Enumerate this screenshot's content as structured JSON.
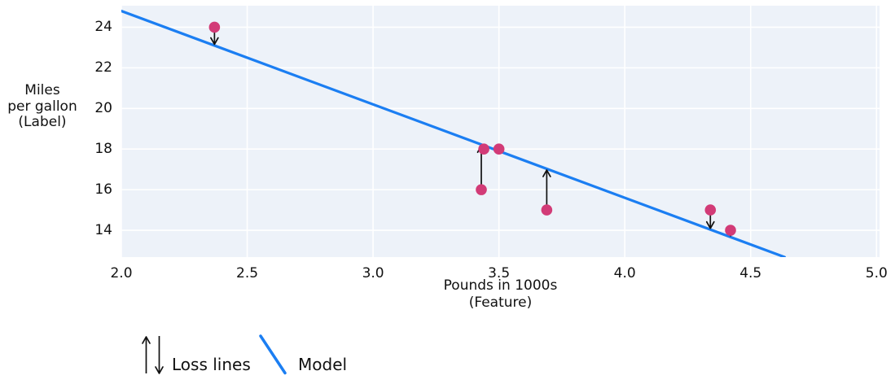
{
  "chart_data": {
    "type": "scatter",
    "title": "",
    "xlabel_lines": [
      "Pounds in 1000s",
      "(Feature)"
    ],
    "ylabel_lines": [
      "Miles",
      "per gallon",
      "(Label)"
    ],
    "x_ticks": [
      {
        "value": 2.0,
        "label": "2.0"
      },
      {
        "value": 2.5,
        "label": "2.5"
      },
      {
        "value": 3.0,
        "label": "3.0"
      },
      {
        "value": 3.5,
        "label": "3.5"
      },
      {
        "value": 4.0,
        "label": "4.0"
      },
      {
        "value": 4.5,
        "label": "4.5"
      },
      {
        "value": 5.0,
        "label": "5.0"
      }
    ],
    "y_ticks": [
      {
        "value": 24,
        "label": "24"
      },
      {
        "value": 22,
        "label": "22"
      },
      {
        "value": 20,
        "label": "20"
      },
      {
        "value": 18,
        "label": "18"
      },
      {
        "value": 16,
        "label": "16"
      },
      {
        "value": 14,
        "label": "14"
      }
    ],
    "x_range": [
      2.0,
      5.012
    ],
    "y_range": [
      12.68,
      25.06
    ],
    "grid": true,
    "points": [
      {
        "x": 3.5,
        "y": 18,
        "loss_arrow": false
      },
      {
        "x": 3.69,
        "y": 15,
        "loss_arrow": true
      },
      {
        "x": 3.44,
        "y": 18,
        "loss_arrow": false
      },
      {
        "x": 3.43,
        "y": 16,
        "loss_arrow": true
      },
      {
        "x": 4.34,
        "y": 15,
        "loss_arrow": true
      },
      {
        "x": 4.42,
        "y": 14,
        "loss_arrow": true
      },
      {
        "x": 2.37,
        "y": 24,
        "loss_arrow": true
      }
    ],
    "model_line": {
      "slope": -4.6,
      "intercept": 34
    },
    "legend": {
      "loss_label": "Loss lines",
      "model_label": "Model"
    },
    "colors": {
      "model_line": "#1b7ef2",
      "point": "#d23b77",
      "plot_background": "#edf2f9",
      "gridline": "#ffffff",
      "loss_arrow": "#111111",
      "text": "#111111"
    }
  }
}
